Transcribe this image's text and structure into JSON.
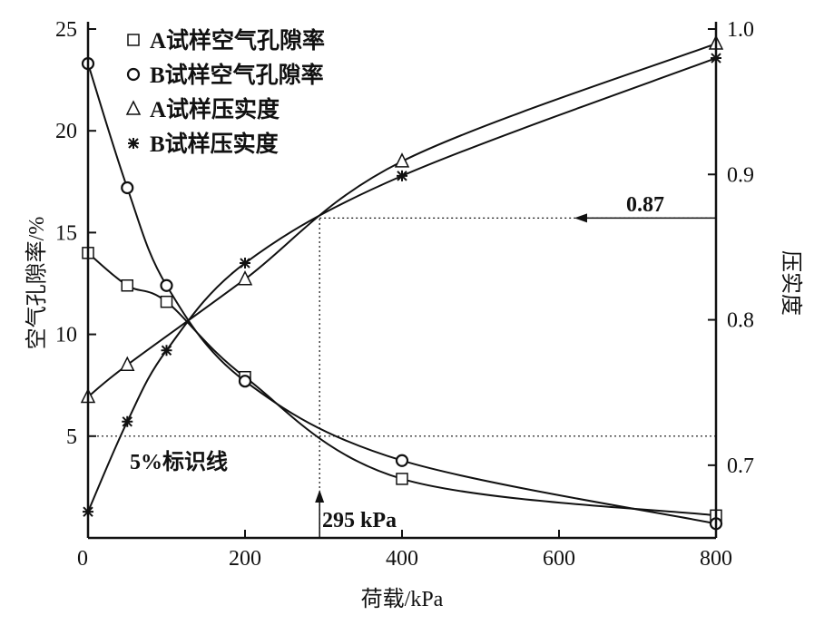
{
  "chart_data": {
    "type": "scatter",
    "xlabel": "荷载/kPa",
    "ylabel_left": "空气孔隙率/%",
    "ylabel_right": "压实度",
    "xlim": [
      0,
      800
    ],
    "ylim_left": [
      0,
      25
    ],
    "ylim_right": [
      0.65,
      1.0
    ],
    "xticks": [
      0,
      200,
      400,
      600,
      800
    ],
    "yticks_left": [
      5,
      10,
      15,
      20,
      25
    ],
    "yticks_right": [
      0.7,
      0.8,
      0.9,
      1.0
    ],
    "ytick_labels_right": [
      "0.7",
      "0.8",
      "0.9",
      "1.0"
    ],
    "legend_position": "top-left",
    "series": [
      {
        "name": "A试样空气孔隙率",
        "axis": "left",
        "marker": "square",
        "x": [
          0,
          50,
          100,
          200,
          400,
          800
        ],
        "y": [
          14.0,
          12.4,
          11.6,
          7.9,
          2.9,
          1.1
        ]
      },
      {
        "name": "B试样空气孔隙率",
        "axis": "left",
        "marker": "circle",
        "x": [
          0,
          50,
          100,
          200,
          400,
          800
        ],
        "y": [
          23.3,
          17.2,
          12.4,
          7.7,
          3.8,
          0.7
        ]
      },
      {
        "name": "A试样压实度",
        "axis": "right",
        "marker": "triangle",
        "x": [
          0,
          50,
          200,
          400,
          800
        ],
        "y": [
          0.747,
          0.769,
          0.828,
          0.909,
          0.99
        ]
      },
      {
        "name": "B试样压实度",
        "axis": "right",
        "marker": "star",
        "x": [
          0,
          50,
          100,
          200,
          400,
          800
        ],
        "y": [
          0.668,
          0.73,
          0.779,
          0.839,
          0.899,
          0.98
        ]
      }
    ],
    "annotations": {
      "line_5_label": "5%标识线",
      "line_5_value": 5,
      "compaction_label": "0.87",
      "compaction_value": 0.87,
      "load_label": "295 kPa",
      "load_value": 295
    }
  }
}
